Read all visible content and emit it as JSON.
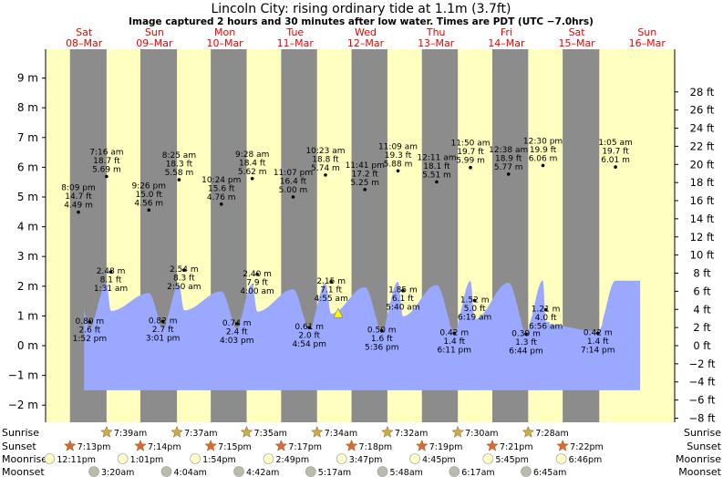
{
  "title": "Lincoln City: rising  ordinary tide at 1.1m (3.7ft)",
  "subtitle": "Image captured 2 hours and 30 minutes after low water. Times are PDT (UTC −7.0hrs)",
  "days": [
    {
      "name": "Sat",
      "date": "08–Mar"
    },
    {
      "name": "Sun",
      "date": "09–Mar"
    },
    {
      "name": "Mon",
      "date": "10–Mar"
    },
    {
      "name": "Tue",
      "date": "11–Mar"
    },
    {
      "name": "Wed",
      "date": "12–Mar"
    },
    {
      "name": "Thu",
      "date": "13–Mar"
    },
    {
      "name": "Fri",
      "date": "14–Mar"
    },
    {
      "name": "Sat",
      "date": "15–Mar"
    },
    {
      "name": "Sun",
      "date": "16–Mar"
    }
  ],
  "colors": {
    "day_bg": "#ffffc0",
    "night_bg": "#8c8c8c",
    "water": "#9aa8ff",
    "sun": "#ccaa44",
    "sunset": "#dd6633",
    "moon": "#ffffcc",
    "moonset": "#bbbbaa",
    "current": "#ffff00"
  },
  "chart_data": {
    "type": "area",
    "title": "Lincoln City: rising  ordinary tide at 1.1m (3.7ft)",
    "x_unit": "days from Sat 08-Mar 00:00 (PDT)",
    "ylim_m": [
      -2.2,
      9.2
    ],
    "y_ticks_m": [
      -2,
      -1,
      0,
      1,
      2,
      3,
      4,
      5,
      6,
      7,
      8,
      9
    ],
    "y_ticks_ft": [
      -8,
      -6,
      -4,
      -2,
      0,
      2,
      4,
      6,
      8,
      10,
      12,
      14,
      16,
      18,
      20,
      22,
      24,
      26,
      28
    ],
    "current_level_m": 1.1,
    "current_time": "4:55 am Wed 12-Mar",
    "events": [
      {
        "x": 0.92,
        "h": 4.49,
        "lines": [
          "8:09 pm",
          "14.7 ft",
          "4.49 m"
        ]
      },
      {
        "x": 1.08,
        "h": 0.8,
        "lines": [
          "0.80 m",
          "2.6 ft",
          "1:52 pm"
        ]
      },
      {
        "x": 1.32,
        "h": 5.69,
        "lines": [
          "7:16 am",
          "18.7 ft",
          "5.69 m"
        ]
      },
      {
        "x": 1.38,
        "h": 2.48,
        "lines": [
          "2.48 m",
          "8.1 ft",
          "1:31 am"
        ]
      },
      {
        "x": 1.92,
        "h": 4.56,
        "lines": [
          "9:26 pm",
          "15.0 ft",
          "4.56 m"
        ]
      },
      {
        "x": 2.12,
        "h": 0.82,
        "lines": [
          "0.82 m",
          "2.7 ft",
          "3:01 pm"
        ]
      },
      {
        "x": 2.35,
        "h": 5.58,
        "lines": [
          "8:25 am",
          "18.3 ft",
          "5.58 m"
        ]
      },
      {
        "x": 2.42,
        "h": 2.54,
        "lines": [
          "2.54 m",
          "8.3 ft",
          "2:50 am"
        ]
      },
      {
        "x": 2.95,
        "h": 4.76,
        "lines": [
          "10:24 pm",
          "15.6 ft",
          "4.76 m"
        ]
      },
      {
        "x": 3.17,
        "h": 0.74,
        "lines": [
          "0.74 m",
          "2.4 ft",
          "4:03 pm"
        ]
      },
      {
        "x": 3.39,
        "h": 5.62,
        "lines": [
          "9:28 am",
          "18.4 ft",
          "5.62 m"
        ]
      },
      {
        "x": 3.46,
        "h": 2.4,
        "lines": [
          "2.40 m",
          "7.9 ft",
          "4:00 am"
        ]
      },
      {
        "x": 3.97,
        "h": 5.0,
        "lines": [
          "11:07 pm",
          "16.4 ft",
          "5.00 m"
        ]
      },
      {
        "x": 4.2,
        "h": 0.61,
        "lines": [
          "0.61 m",
          "2.0 ft",
          "4:54 pm"
        ]
      },
      {
        "x": 4.43,
        "h": 5.74,
        "lines": [
          "10:23 am",
          "18.8 ft",
          "5.74 m"
        ]
      },
      {
        "x": 4.51,
        "h": 2.15,
        "lines": [
          "2.15 m",
          "7.1 ft",
          "4:55 am"
        ]
      },
      {
        "x": 5.23,
        "h": 0.5,
        "lines": [
          "0.50 m",
          "1.6 ft",
          "5:36 pm"
        ]
      },
      {
        "x": 4.99,
        "h": 5.25,
        "lines": [
          "11:41 pm",
          "17.2 ft",
          "5.25 m"
        ]
      },
      {
        "x": 5.46,
        "h": 5.88,
        "lines": [
          "11:09 am",
          "19.3 ft",
          "5.88 m"
        ]
      },
      {
        "x": 5.53,
        "h": 1.85,
        "lines": [
          "1.85 m",
          "6.1 ft",
          "5:40 am"
        ]
      },
      {
        "x": 6.26,
        "h": 0.42,
        "lines": [
          "0.42 m",
          "1.4 ft",
          "6:11 pm"
        ]
      },
      {
        "x": 6.01,
        "h": 5.51,
        "lines": [
          "12:11 am",
          "18.1 ft",
          "5.51 m"
        ]
      },
      {
        "x": 6.49,
        "h": 5.99,
        "lines": [
          "11:50 am",
          "19.7 ft",
          "5.99 m"
        ]
      },
      {
        "x": 6.55,
        "h": 1.52,
        "lines": [
          "1.52 m",
          "5.0 ft",
          "6:19 am"
        ]
      },
      {
        "x": 7.28,
        "h": 0.39,
        "lines": [
          "0.39 m",
          "1.3 ft",
          "6:44 pm"
        ]
      },
      {
        "x": 7.03,
        "h": 5.77,
        "lines": [
          "12:38 am",
          "18.9 ft",
          "5.77 m"
        ]
      },
      {
        "x": 7.52,
        "h": 6.06,
        "lines": [
          "12:30 pm",
          "19.9 ft",
          "6.06 m"
        ]
      },
      {
        "x": 7.56,
        "h": 1.21,
        "lines": [
          "1.21 m",
          "4.0 ft",
          "6:56 am"
        ]
      },
      {
        "x": 8.3,
        "h": 0.42,
        "lines": [
          "0.42 m",
          "1.4 ft",
          "7:14 pm"
        ]
      },
      {
        "x": 8.55,
        "h": 6.01,
        "lines": [
          "1:05 am",
          "19.7 ft",
          "6.01 m"
        ]
      }
    ],
    "rows": [
      {
        "label": "Sunrise",
        "kind": "sun",
        "items": [
          {
            "x": 1.32,
            "t": "7:39am"
          },
          {
            "x": 2.32,
            "t": "7:37am"
          },
          {
            "x": 3.31,
            "t": "7:35am"
          },
          {
            "x": 4.31,
            "t": "7:34am"
          },
          {
            "x": 5.31,
            "t": "7:32am"
          },
          {
            "x": 6.31,
            "t": "7:30am"
          },
          {
            "x": 7.31,
            "t": "7:28am"
          }
        ]
      },
      {
        "label": "Sunset",
        "kind": "sunset",
        "items": [
          {
            "x": 0.8,
            "t": "7:13pm"
          },
          {
            "x": 1.8,
            "t": "7:14pm"
          },
          {
            "x": 2.8,
            "t": "7:15pm"
          },
          {
            "x": 3.8,
            "t": "7:17pm"
          },
          {
            "x": 4.8,
            "t": "7:18pm"
          },
          {
            "x": 5.8,
            "t": "7:19pm"
          },
          {
            "x": 6.8,
            "t": "7:21pm"
          },
          {
            "x": 7.8,
            "t": "7:22pm"
          }
        ]
      },
      {
        "label": "Moonrise",
        "kind": "moon",
        "items": [
          {
            "x": 0.51,
            "t": "12:11pm"
          },
          {
            "x": 1.55,
            "t": "1:01pm"
          },
          {
            "x": 2.58,
            "t": "1:54pm"
          },
          {
            "x": 3.62,
            "t": "2:49pm"
          },
          {
            "x": 4.66,
            "t": "3:47pm"
          },
          {
            "x": 5.7,
            "t": "4:45pm"
          },
          {
            "x": 6.74,
            "t": "5:45pm"
          },
          {
            "x": 7.78,
            "t": "6:46pm"
          }
        ]
      },
      {
        "label": "Moonset",
        "kind": "moonset",
        "items": [
          {
            "x": 1.14,
            "t": "3:20am"
          },
          {
            "x": 2.17,
            "t": "4:04am"
          },
          {
            "x": 3.2,
            "t": "4:42am"
          },
          {
            "x": 4.22,
            "t": "5:17am"
          },
          {
            "x": 5.24,
            "t": "5:48am"
          },
          {
            "x": 6.26,
            "t": "6:17am"
          },
          {
            "x": 7.28,
            "t": "6:45am"
          }
        ]
      }
    ]
  }
}
